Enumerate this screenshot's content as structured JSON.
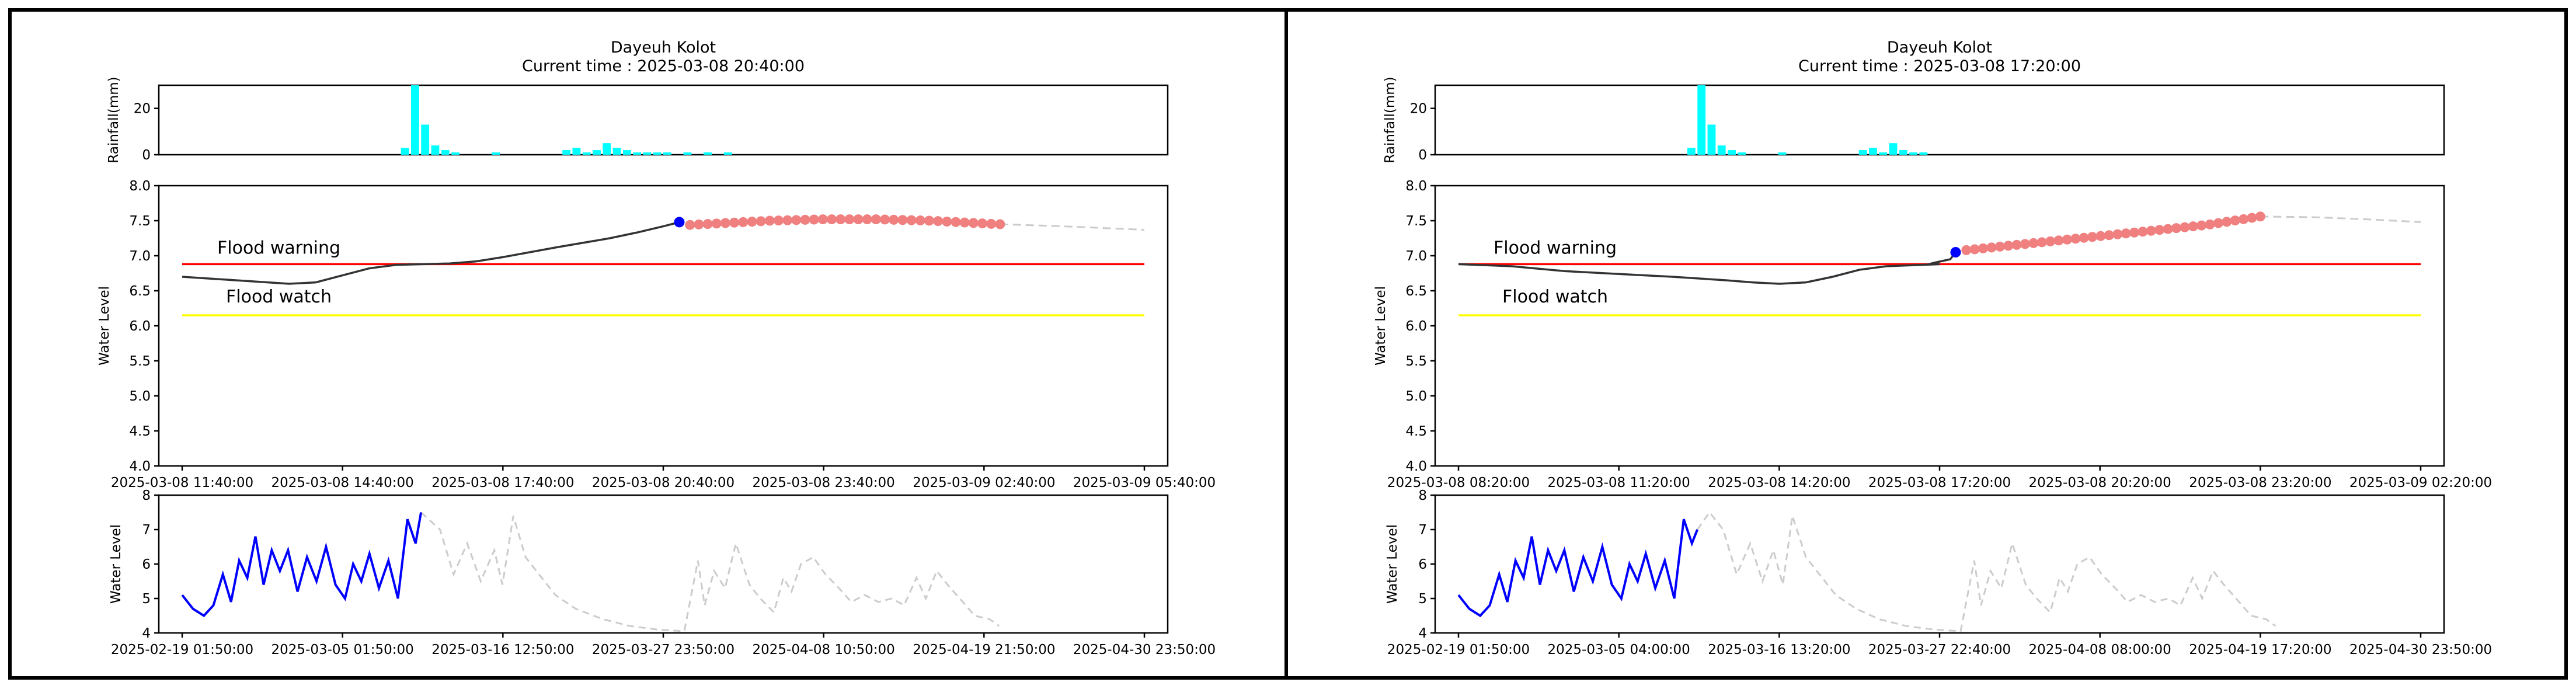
{
  "chart_data": [
    {
      "type": "line",
      "title": "Dayeuh Kolot",
      "subtitle": "Current time : 2025-03-08 20:40:00",
      "colors": {
        "rain": "#00ffff",
        "observed": "#333333",
        "forecast": "#f08080",
        "current": "#0000ff",
        "warning": "#ff0000",
        "watch": "#ffff00",
        "future": "#cccccc",
        "history": "#0000ff"
      },
      "rainfall": {
        "ylabel": "Rainfall(mm)",
        "ylim": [
          0,
          30
        ],
        "yticks": [
          "0",
          "20"
        ],
        "x": [
          0.24,
          0.25,
          0.26,
          0.27,
          0.28,
          0.29,
          0.33,
          0.4,
          0.41,
          0.42,
          0.43,
          0.44,
          0.45,
          0.46,
          0.47,
          0.48,
          0.49,
          0.5,
          0.52,
          0.54,
          0.56
        ],
        "values": [
          3,
          30,
          13,
          4,
          2,
          1,
          1,
          2,
          3,
          1,
          2,
          5,
          3,
          2,
          1,
          1,
          1,
          1,
          1,
          1,
          1
        ]
      },
      "main": {
        "ylabel": "Water Level",
        "ylim": [
          4.0,
          8.0
        ],
        "yticks": [
          "4.0",
          "4.5",
          "5.0",
          "5.5",
          "6.0",
          "6.5",
          "7.0",
          "7.5",
          "8.0"
        ],
        "xticks": [
          "2025-03-08 11:40:00",
          "2025-03-08 14:40:00",
          "2025-03-08 17:40:00",
          "2025-03-08 20:40:00",
          "2025-03-08 23:40:00",
          "2025-03-09 02:40:00",
          "2025-03-09 05:40:00"
        ],
        "x_hours": [
          0,
          18
        ],
        "flood_warning": {
          "label": "Flood warning",
          "value": 6.88
        },
        "flood_watch": {
          "label": "Flood watch",
          "value": 6.15
        },
        "observed": [
          [
            0,
            6.7
          ],
          [
            1,
            6.65
          ],
          [
            2,
            6.6
          ],
          [
            2.5,
            6.62
          ],
          [
            3,
            6.72
          ],
          [
            3.5,
            6.82
          ],
          [
            4,
            6.87
          ],
          [
            5,
            6.89
          ],
          [
            5.5,
            6.92
          ],
          [
            6,
            6.98
          ],
          [
            7,
            7.12
          ],
          [
            8,
            7.25
          ],
          [
            8.5,
            7.33
          ],
          [
            9,
            7.42
          ],
          [
            9.3,
            7.48
          ]
        ],
        "current": [
          9.3,
          7.48
        ],
        "forecast": [
          [
            9.5,
            7.44
          ],
          [
            10,
            7.46
          ],
          [
            11,
            7.5
          ],
          [
            12,
            7.52
          ],
          [
            13,
            7.52
          ],
          [
            14,
            7.5
          ],
          [
            15,
            7.46
          ],
          [
            15.3,
            7.45
          ]
        ],
        "future": [
          [
            15.3,
            7.45
          ],
          [
            16.5,
            7.42
          ],
          [
            18,
            7.37
          ]
        ]
      },
      "history": {
        "ylabel": "Water Level",
        "ylim": [
          4,
          8
        ],
        "yticks": [
          "4",
          "5",
          "6",
          "7",
          "8"
        ],
        "xticks": [
          "2025-02-19 01:50:00",
          "2025-03-05 01:50:00",
          "2025-03-16 12:50:00",
          "2025-03-27 23:50:00",
          "2025-04-08 10:50:00",
          "2025-04-19 21:50:00",
          "2025-04-30 23:50:00"
        ],
        "x_days": [
          0,
          70.9
        ],
        "past": [
          [
            0,
            5.1
          ],
          [
            0.8,
            4.7
          ],
          [
            1.6,
            4.5
          ],
          [
            2.3,
            4.8
          ],
          [
            3,
            5.7
          ],
          [
            3.6,
            4.9
          ],
          [
            4.2,
            6.1
          ],
          [
            4.8,
            5.6
          ],
          [
            5.4,
            6.8
          ],
          [
            6,
            5.4
          ],
          [
            6.6,
            6.4
          ],
          [
            7.2,
            5.8
          ],
          [
            7.8,
            6.4
          ],
          [
            8.5,
            5.2
          ],
          [
            9.2,
            6.2
          ],
          [
            9.9,
            5.5
          ],
          [
            10.6,
            6.5
          ],
          [
            11.3,
            5.4
          ],
          [
            12,
            5.0
          ],
          [
            12.6,
            6.0
          ],
          [
            13.2,
            5.5
          ],
          [
            13.8,
            6.3
          ],
          [
            14.5,
            5.3
          ],
          [
            15.2,
            6.1
          ],
          [
            15.9,
            5.0
          ],
          [
            16.6,
            7.3
          ],
          [
            17.2,
            6.6
          ],
          [
            17.6,
            7.5
          ]
        ],
        "future": [
          [
            17.6,
            7.5
          ],
          [
            19,
            7.0
          ],
          [
            20,
            5.7
          ],
          [
            21,
            6.6
          ],
          [
            22,
            5.5
          ],
          [
            23,
            6.4
          ],
          [
            23.6,
            5.4
          ],
          [
            24.4,
            7.4
          ],
          [
            25.3,
            6.2
          ],
          [
            26.3,
            5.7
          ],
          [
            27.5,
            5.1
          ],
          [
            29,
            4.7
          ],
          [
            31,
            4.4
          ],
          [
            33,
            4.2
          ],
          [
            35,
            4.1
          ],
          [
            37,
            4.05
          ],
          [
            38,
            6.1
          ],
          [
            38.5,
            4.8
          ],
          [
            39.2,
            5.8
          ],
          [
            40,
            5.3
          ],
          [
            40.8,
            6.6
          ],
          [
            41.8,
            5.4
          ],
          [
            42.6,
            5.0
          ],
          [
            43.6,
            4.6
          ],
          [
            44.3,
            5.6
          ],
          [
            44.9,
            5.2
          ],
          [
            45.6,
            6.0
          ],
          [
            46.5,
            6.2
          ],
          [
            47.4,
            5.7
          ],
          [
            48.4,
            5.3
          ],
          [
            49.3,
            4.9
          ],
          [
            50.3,
            5.1
          ],
          [
            51.3,
            4.9
          ],
          [
            52.3,
            5.0
          ],
          [
            53.2,
            4.8
          ],
          [
            54.1,
            5.6
          ],
          [
            54.8,
            5.0
          ],
          [
            55.6,
            5.8
          ],
          [
            56.4,
            5.4
          ],
          [
            57.3,
            5.0
          ],
          [
            58.4,
            4.5
          ],
          [
            59.5,
            4.4
          ],
          [
            60.2,
            4.2
          ]
        ]
      }
    },
    {
      "type": "line",
      "title": "Dayeuh Kolot",
      "subtitle": "Current time : 2025-03-08 17:20:00",
      "colors": {
        "rain": "#00ffff",
        "observed": "#333333",
        "forecast": "#f08080",
        "current": "#0000ff",
        "warning": "#ff0000",
        "watch": "#ffff00",
        "future": "#cccccc",
        "history": "#0000ff"
      },
      "rainfall": {
        "ylabel": "Rainfall(mm)",
        "ylim": [
          0,
          30
        ],
        "yticks": [
          "0",
          "20"
        ],
        "x": [
          0.25,
          0.26,
          0.27,
          0.28,
          0.29,
          0.3,
          0.34,
          0.42,
          0.43,
          0.44,
          0.45,
          0.46,
          0.47,
          0.48
        ],
        "values": [
          3,
          30,
          13,
          4,
          2,
          1,
          1,
          2,
          3,
          1,
          5,
          2,
          1,
          1
        ]
      },
      "main": {
        "ylabel": "Water Level",
        "ylim": [
          4.0,
          8.0
        ],
        "yticks": [
          "4.0",
          "4.5",
          "5.0",
          "5.5",
          "6.0",
          "6.5",
          "7.0",
          "7.5",
          "8.0"
        ],
        "xticks": [
          "2025-03-08 08:20:00",
          "2025-03-08 11:20:00",
          "2025-03-08 14:20:00",
          "2025-03-08 17:20:00",
          "2025-03-08 20:20:00",
          "2025-03-08 23:20:00",
          "2025-03-09 02:20:00"
        ],
        "x_hours": [
          0,
          18
        ],
        "flood_warning": {
          "label": "Flood warning",
          "value": 6.88
        },
        "flood_watch": {
          "label": "Flood watch",
          "value": 6.15
        },
        "observed": [
          [
            0,
            6.88
          ],
          [
            1,
            6.85
          ],
          [
            2,
            6.78
          ],
          [
            3,
            6.74
          ],
          [
            4,
            6.7
          ],
          [
            5,
            6.65
          ],
          [
            5.5,
            6.62
          ],
          [
            6,
            6.6
          ],
          [
            6.5,
            6.62
          ],
          [
            7,
            6.7
          ],
          [
            7.5,
            6.8
          ],
          [
            8,
            6.85
          ],
          [
            9,
            6.88
          ],
          [
            8.8,
            6.88
          ],
          [
            8.9,
            6.9
          ],
          [
            9.2,
            6.95
          ],
          [
            9.3,
            7.05
          ]
        ],
        "current": [
          9.3,
          7.05
        ],
        "forecast": [
          [
            9.5,
            7.08
          ],
          [
            10,
            7.12
          ],
          [
            11,
            7.2
          ],
          [
            12,
            7.28
          ],
          [
            13,
            7.36
          ],
          [
            14,
            7.44
          ],
          [
            14.5,
            7.5
          ],
          [
            15,
            7.56
          ]
        ],
        "future": [
          [
            15,
            7.56
          ],
          [
            16,
            7.55
          ],
          [
            17,
            7.52
          ],
          [
            18,
            7.48
          ]
        ]
      },
      "history": {
        "ylabel": "Water Level",
        "ylim": [
          4,
          8
        ],
        "yticks": [
          "4",
          "5",
          "6",
          "7",
          "8"
        ],
        "xticks": [
          "2025-02-19 01:50:00",
          "2025-03-05 04:00:00",
          "2025-03-16 13:20:00",
          "2025-03-27 22:40:00",
          "2025-04-08 08:00:00",
          "2025-04-19 17:20:00",
          "2025-04-30 23:50:00"
        ],
        "x_days": [
          0,
          70.9
        ],
        "past": [
          [
            0,
            5.1
          ],
          [
            0.8,
            4.7
          ],
          [
            1.6,
            4.5
          ],
          [
            2.3,
            4.8
          ],
          [
            3,
            5.7
          ],
          [
            3.6,
            4.9
          ],
          [
            4.2,
            6.1
          ],
          [
            4.8,
            5.6
          ],
          [
            5.4,
            6.8
          ],
          [
            6,
            5.4
          ],
          [
            6.6,
            6.4
          ],
          [
            7.2,
            5.8
          ],
          [
            7.8,
            6.4
          ],
          [
            8.5,
            5.2
          ],
          [
            9.2,
            6.2
          ],
          [
            9.9,
            5.5
          ],
          [
            10.6,
            6.5
          ],
          [
            11.3,
            5.4
          ],
          [
            12,
            5.0
          ],
          [
            12.6,
            6.0
          ],
          [
            13.2,
            5.5
          ],
          [
            13.8,
            6.3
          ],
          [
            14.5,
            5.3
          ],
          [
            15.2,
            6.1
          ],
          [
            15.9,
            5.0
          ],
          [
            16.6,
            7.3
          ],
          [
            17.2,
            6.6
          ],
          [
            17.6,
            7.0
          ]
        ],
        "future": [
          [
            17.6,
            7.0
          ],
          [
            18.5,
            7.5
          ],
          [
            19.5,
            7.0
          ],
          [
            20.5,
            5.7
          ],
          [
            21.5,
            6.6
          ],
          [
            22.4,
            5.5
          ],
          [
            23.2,
            6.4
          ],
          [
            23.9,
            5.4
          ],
          [
            24.6,
            7.4
          ],
          [
            25.6,
            6.2
          ],
          [
            26.6,
            5.7
          ],
          [
            27.8,
            5.1
          ],
          [
            29.3,
            4.7
          ],
          [
            31,
            4.4
          ],
          [
            33,
            4.2
          ],
          [
            35,
            4.1
          ],
          [
            37,
            4.05
          ],
          [
            38,
            6.1
          ],
          [
            38.5,
            4.8
          ],
          [
            39.2,
            5.8
          ],
          [
            40,
            5.3
          ],
          [
            40.8,
            6.6
          ],
          [
            41.8,
            5.4
          ],
          [
            42.6,
            5.0
          ],
          [
            43.6,
            4.6
          ],
          [
            44.3,
            5.6
          ],
          [
            44.9,
            5.2
          ],
          [
            45.6,
            6.0
          ],
          [
            46.5,
            6.2
          ],
          [
            47.4,
            5.7
          ],
          [
            48.4,
            5.3
          ],
          [
            49.3,
            4.9
          ],
          [
            50.3,
            5.1
          ],
          [
            51.3,
            4.9
          ],
          [
            52.3,
            5.0
          ],
          [
            53.2,
            4.8
          ],
          [
            54.1,
            5.6
          ],
          [
            54.8,
            5.0
          ],
          [
            55.6,
            5.8
          ],
          [
            56.4,
            5.4
          ],
          [
            57.3,
            5.0
          ],
          [
            58.4,
            4.5
          ],
          [
            59.5,
            4.4
          ],
          [
            60.2,
            4.2
          ]
        ]
      }
    }
  ]
}
